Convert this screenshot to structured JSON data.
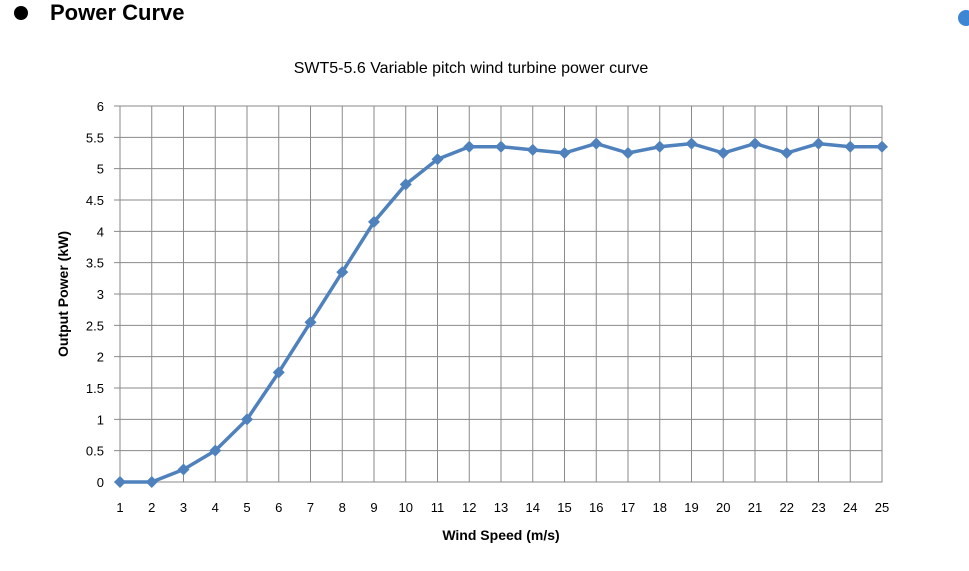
{
  "section": {
    "title": "Power Curve"
  },
  "chart_data": {
    "type": "line",
    "title": "SWT5-5.6 Variable pitch wind turbine power curve",
    "xlabel": "Wind Speed (m/s)",
    "ylabel": "Output Power (kW)",
    "x": [
      1,
      2,
      3,
      4,
      5,
      6,
      7,
      8,
      9,
      10,
      11,
      12,
      13,
      14,
      15,
      16,
      17,
      18,
      19,
      20,
      21,
      22,
      23,
      24,
      25
    ],
    "series": [
      {
        "values": [
          0,
          0,
          0.2,
          0.5,
          1.0,
          1.75,
          2.55,
          3.35,
          4.15,
          4.75,
          5.15,
          5.35,
          5.35,
          5.3,
          5.25,
          5.4,
          5.25,
          5.35,
          5.4,
          5.25,
          5.4,
          5.25,
          5.4,
          5.35,
          5.35
        ],
        "color": "#4f81bd"
      }
    ],
    "ylim": [
      0,
      6
    ],
    "yticks": [
      "0",
      "0.5",
      "1",
      "1.5",
      "2",
      "2.5",
      "3",
      "3.5",
      "4",
      "4.5",
      "5",
      "5.5",
      "6"
    ],
    "xticks": [
      "1",
      "2",
      "3",
      "4",
      "5",
      "6",
      "7",
      "8",
      "9",
      "10",
      "11",
      "12",
      "13",
      "14",
      "15",
      "16",
      "17",
      "18",
      "19",
      "20",
      "21",
      "22",
      "23",
      "24",
      "25"
    ],
    "grid": true,
    "legend": "none",
    "marker": "diamond"
  },
  "accent_color": "#3d86d4"
}
